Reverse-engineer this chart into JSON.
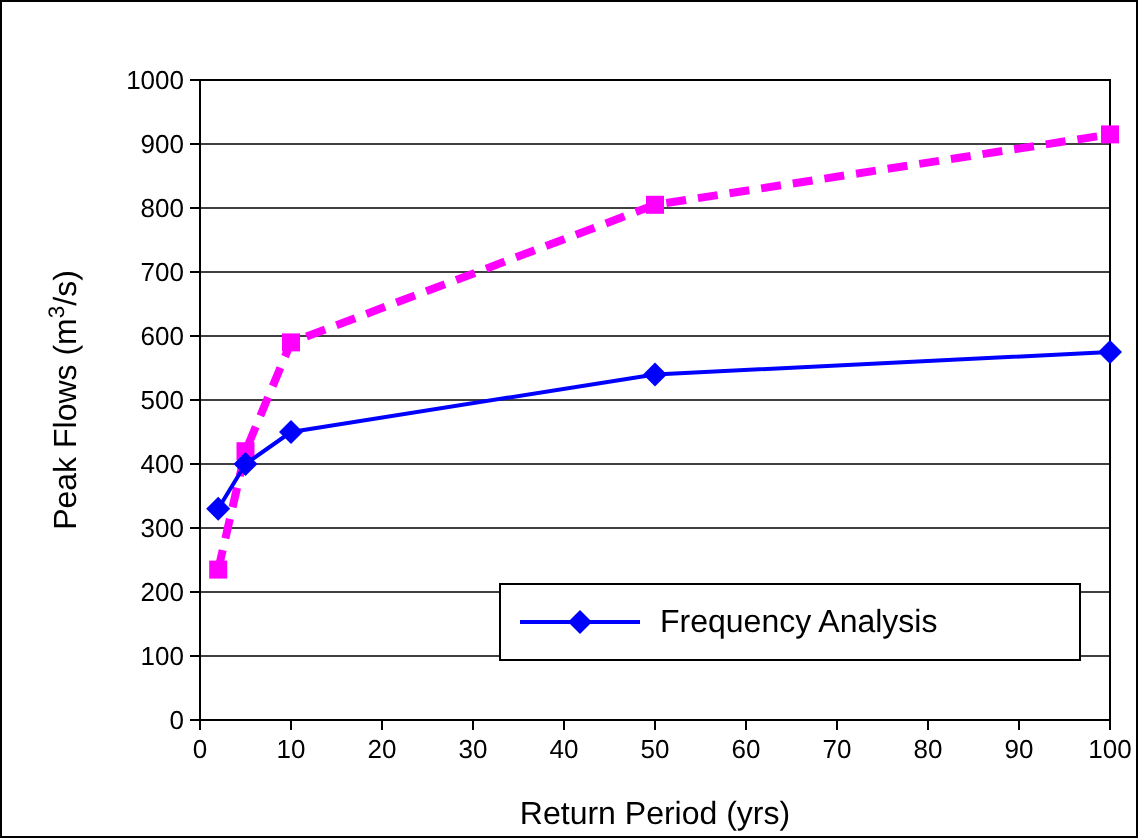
{
  "chart_data": {
    "type": "line",
    "xlabel": "Return Period (yrs)",
    "ylabel": "Peak Flows (m$^{3}$/s)",
    "xlim": [
      0,
      100
    ],
    "xticks": [
      0,
      10,
      20,
      30,
      40,
      50,
      60,
      70,
      80,
      90,
      100
    ],
    "ylim": [
      0,
      1000
    ],
    "yticks": [
      0,
      100,
      200,
      300,
      400,
      500,
      600,
      700,
      800,
      900,
      1000
    ],
    "grid": "y",
    "legend": "bottom right",
    "series": [
      {
        "name": "Frequency Analysis",
        "color": "#0000ff",
        "x": [
          2,
          5,
          10,
          50,
          100
        ],
        "values": [
          330,
          400,
          450,
          540,
          575
        ],
        "marker": "diamond",
        "line_style": "solid"
      },
      {
        "color": "#ff00ff",
        "x": [
          2,
          5,
          10,
          50,
          100
        ],
        "values": [
          235,
          420,
          590,
          805,
          915
        ],
        "marker": "square",
        "line_style": "dashed"
      }
    ]
  }
}
